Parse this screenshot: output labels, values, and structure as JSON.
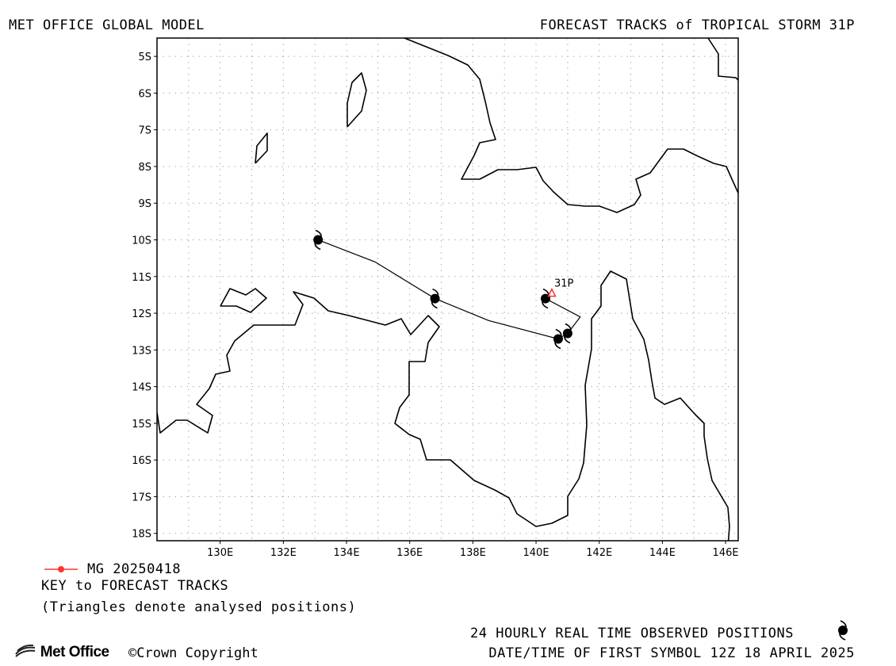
{
  "header": {
    "left_title": "MET OFFICE GLOBAL MODEL",
    "right_title": "FORECAST TRACKS of TROPICAL STORM 31P"
  },
  "map": {
    "lon_ticks": [
      "130E",
      "132E",
      "134E",
      "136E",
      "138E",
      "140E",
      "142E",
      "144E",
      "146E"
    ],
    "lat_ticks": [
      "5S",
      "6S",
      "7S",
      "8S",
      "9S",
      "10S",
      "11S",
      "12S",
      "13S",
      "14S",
      "15S",
      "16S",
      "17S",
      "18S"
    ],
    "lon_range": [
      128,
      146.4
    ],
    "lat_range": [
      -4.5,
      -18.2
    ],
    "grid": "dotted, every 1 degree",
    "storm_label": "31P",
    "analysed_position": {
      "lon": 140.5,
      "lat": -11.45
    },
    "forecast_track": [
      {
        "lon": 140.3,
        "lat": -11.6
      },
      {
        "lon": 141.4,
        "lat": -12.1
      },
      {
        "lon": 141.0,
        "lat": -12.55
      },
      {
        "lon": 140.7,
        "lat": -12.7
      },
      {
        "lon": 138.5,
        "lat": -12.2
      },
      {
        "lon": 136.8,
        "lat": -11.6
      },
      {
        "lon": 134.9,
        "lat": -10.6
      },
      {
        "lon": 133.1,
        "lat": -10.0
      }
    ],
    "observed_symbols": [
      {
        "lon": 140.3,
        "lat": -11.6
      },
      {
        "lon": 141.0,
        "lat": -12.55
      },
      {
        "lon": 140.7,
        "lat": -12.7
      },
      {
        "lon": 136.8,
        "lat": -11.6
      },
      {
        "lon": 133.1,
        "lat": -10.0
      }
    ]
  },
  "legend": {
    "track_label": "MG 20250418",
    "track_color": "#ff3333",
    "key_label": "KEY to FORECAST TRACKS",
    "note": "(Triangles denote analysed positions)"
  },
  "footer": {
    "observed_note": "24 HOURLY REAL TIME OBSERVED POSITIONS",
    "first_symbol": "DATE/TIME OF FIRST SYMBOL 12Z 18 APRIL 2025",
    "brand": "Met Office",
    "copyright": "©Crown Copyright"
  }
}
